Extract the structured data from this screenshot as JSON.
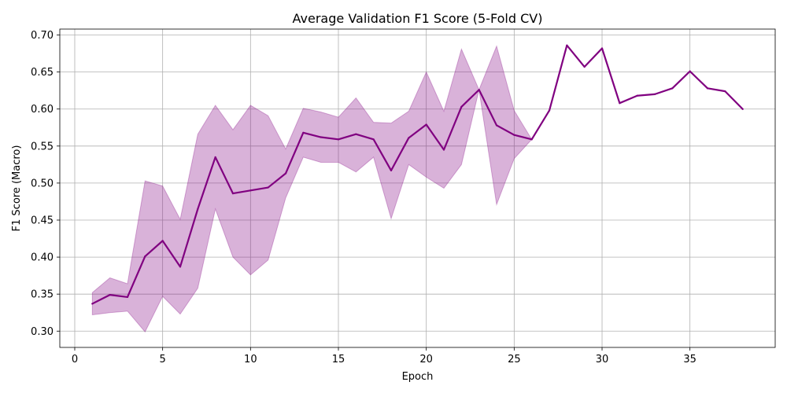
{
  "chart_data": {
    "type": "line",
    "title": "Average Validation F1 Score (5-Fold CV)",
    "xlabel": "Epoch",
    "ylabel": "F1 Score (Macro)",
    "xlim": [
      -0.85,
      39.85
    ],
    "ylim": [
      0.278,
      0.708
    ],
    "xticks": [
      0,
      5,
      10,
      15,
      20,
      25,
      30,
      35
    ],
    "yticks": [
      0.3,
      0.35,
      0.4,
      0.45,
      0.5,
      0.55,
      0.6,
      0.65,
      0.7
    ],
    "ytick_labels": [
      "0.30",
      "0.35",
      "0.40",
      "0.45",
      "0.50",
      "0.55",
      "0.60",
      "0.65",
      "0.70"
    ],
    "grid": true,
    "colors": {
      "line": "#800080",
      "band": "#800080"
    },
    "series": [
      {
        "x": [
          1,
          2,
          3,
          4,
          5,
          6,
          7,
          8,
          9,
          10,
          11,
          12,
          13,
          14,
          15,
          16,
          17,
          18,
          19,
          20,
          21,
          22,
          23,
          24,
          25,
          26,
          27,
          28,
          29,
          30,
          31,
          32,
          33,
          34,
          35,
          36,
          37,
          38
        ],
        "values": [
          0.337,
          0.349,
          0.346,
          0.401,
          0.422,
          0.387,
          0.465,
          0.535,
          0.486,
          0.49,
          0.494,
          0.513,
          0.568,
          0.562,
          0.559,
          0.566,
          0.559,
          0.517,
          0.561,
          0.579,
          0.545,
          0.603,
          0.626,
          0.578,
          0.565,
          0.559,
          0.598,
          0.686,
          0.657,
          0.682,
          0.608,
          0.618,
          0.62,
          0.628,
          0.651,
          0.628,
          0.624,
          0.6
        ],
        "lower": [
          0.322,
          0.325,
          0.327,
          0.299,
          0.347,
          0.323,
          0.358,
          0.465,
          0.4,
          0.376,
          0.396,
          0.48,
          0.535,
          0.528,
          0.528,
          0.515,
          0.535,
          0.452,
          0.525,
          0.508,
          0.493,
          0.525,
          0.626,
          0.471,
          0.533,
          0.559,
          0.598,
          0.686,
          0.657,
          0.682,
          0.608,
          0.618,
          0.62,
          0.628,
          0.651,
          0.628,
          0.624,
          0.6
        ],
        "upper": [
          0.352,
          0.372,
          0.364,
          0.503,
          0.496,
          0.451,
          0.566,
          0.605,
          0.572,
          0.605,
          0.591,
          0.546,
          0.601,
          0.596,
          0.589,
          0.615,
          0.582,
          0.581,
          0.597,
          0.65,
          0.597,
          0.681,
          0.626,
          0.685,
          0.598,
          0.559,
          0.598,
          0.686,
          0.657,
          0.682,
          0.608,
          0.618,
          0.62,
          0.628,
          0.651,
          0.628,
          0.624,
          0.6
        ]
      }
    ]
  }
}
